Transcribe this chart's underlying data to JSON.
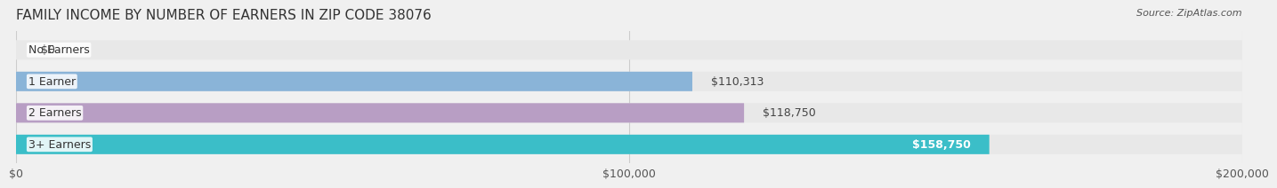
{
  "title": "FAMILY INCOME BY NUMBER OF EARNERS IN ZIP CODE 38076",
  "source": "Source: ZipAtlas.com",
  "categories": [
    "No Earners",
    "1 Earner",
    "2 Earners",
    "3+ Earners"
  ],
  "values": [
    0,
    110313,
    118750,
    158750
  ],
  "bar_colors": [
    "#f4a0a0",
    "#8ab4d8",
    "#b89ec4",
    "#3bbec8"
  ],
  "label_colors": [
    "#555555",
    "#555555",
    "#555555",
    "#ffffff"
  ],
  "value_labels": [
    "$0",
    "$110,313",
    "$118,750",
    "$158,750"
  ],
  "xlim": [
    0,
    200000
  ],
  "xticks": [
    0,
    100000,
    200000
  ],
  "xtick_labels": [
    "$0",
    "$100,000",
    "$200,000"
  ],
  "background_color": "#f0f0f0",
  "bar_background_color": "#e8e8e8",
  "title_fontsize": 11,
  "source_fontsize": 8,
  "label_fontsize": 9,
  "value_fontsize": 9,
  "tick_fontsize": 9
}
